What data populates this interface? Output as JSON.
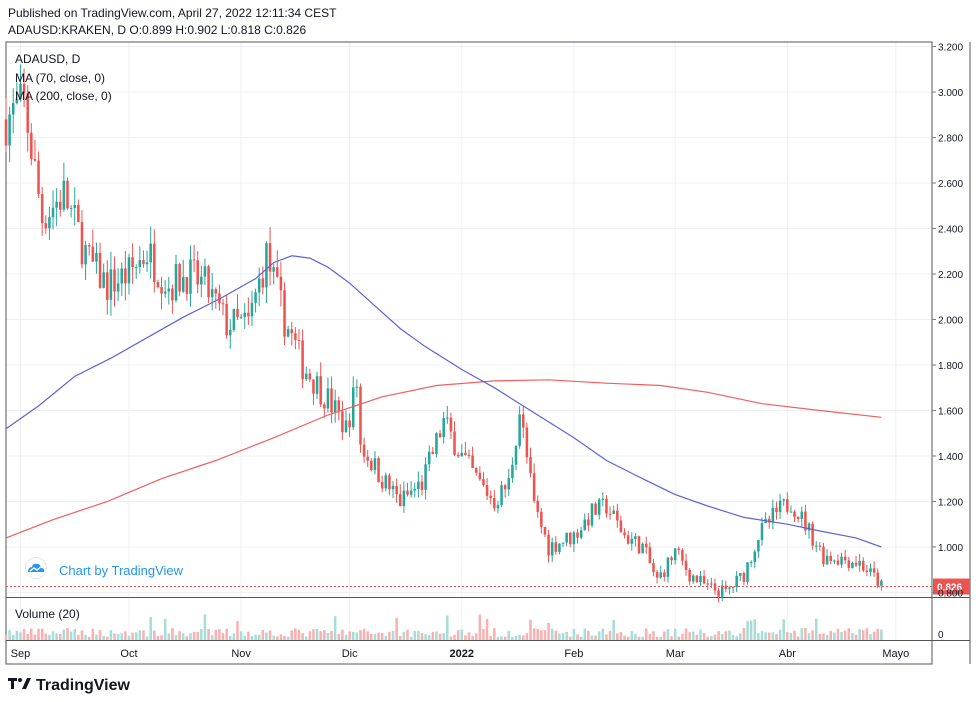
{
  "header": {
    "published": "Published on TradingView.com, April 27, 2022 12:11:34 CEST",
    "ohlc_line": "ADAUSD:KRAKEN, D O:0.899 H:0.902 L:0.818 C:0.826"
  },
  "legend": {
    "symbol": "ADAUSD, D",
    "ma70": "MA (70, close, 0)",
    "ma200": "MA (200, close, 0)",
    "volume": "Volume (20)"
  },
  "watermark": {
    "text": "Chart by TradingView",
    "icon": "tradingview-cloud-icon"
  },
  "footer": {
    "brand": "TradingView",
    "icon": "tradingview-logo-icon"
  },
  "colors": {
    "up": "#26a69a",
    "down": "#ef5350",
    "ma70": "#5b63d9",
    "ma200": "#f0605d",
    "last_price": "#ef5350",
    "grid": "#eef0f3",
    "axis_text": "#131722"
  },
  "chart_data": {
    "type": "candlestick",
    "symbol": "ADAUSD",
    "exchange": "KRAKEN",
    "timeframe": "D",
    "last_price": 0.826,
    "last_price_label": "0.826",
    "ylim": [
      0.78,
      3.22
    ],
    "y_ticks": [
      3.2,
      3.0,
      2.8,
      2.6,
      2.4,
      2.2,
      2.0,
      1.8,
      1.6,
      1.4,
      1.2,
      1.0,
      0.8
    ],
    "y_tick_labels": [
      "3.200",
      "3.000",
      "2.800",
      "2.600",
      "2.400",
      "2.200",
      "2.000",
      "1.800",
      "1.600",
      "1.400",
      "1.200",
      "1.000",
      "0.800"
    ],
    "x_labels": [
      {
        "label": "Sep",
        "date": "2021-09-01"
      },
      {
        "label": "Oct",
        "date": "2021-10-01"
      },
      {
        "label": "Nov",
        "date": "2021-11-01"
      },
      {
        "label": "Dic",
        "date": "2021-12-01"
      },
      {
        "label": "2022",
        "date": "2022-01-01",
        "bold": true
      },
      {
        "label": "Feb",
        "date": "2022-02-01"
      },
      {
        "label": "Mar",
        "date": "2022-03-01"
      },
      {
        "label": "Abr",
        "date": "2022-04-01"
      },
      {
        "label": "Mayo",
        "date": "2022-05-01"
      }
    ],
    "date_range": [
      "2021-08-28",
      "2022-05-11"
    ],
    "volume_axis_label": "0",
    "close_path": [
      {
        "date": "2021-08-28",
        "close": 2.88
      },
      {
        "date": "2021-09-02",
        "close": 2.95
      },
      {
        "date": "2021-09-07",
        "close": 2.45
      },
      {
        "date": "2021-09-13",
        "close": 2.55
      },
      {
        "date": "2021-09-20",
        "close": 2.25
      },
      {
        "date": "2021-09-25",
        "close": 2.15
      },
      {
        "date": "2021-10-01",
        "close": 2.2
      },
      {
        "date": "2021-10-06",
        "close": 2.3
      },
      {
        "date": "2021-10-12",
        "close": 2.15
      },
      {
        "date": "2021-10-17",
        "close": 2.2
      },
      {
        "date": "2021-10-22",
        "close": 2.15
      },
      {
        "date": "2021-10-28",
        "close": 1.98
      },
      {
        "date": "2021-11-03",
        "close": 1.98
      },
      {
        "date": "2021-11-08",
        "close": 2.28
      },
      {
        "date": "2021-11-13",
        "close": 2.0
      },
      {
        "date": "2021-11-18",
        "close": 1.8
      },
      {
        "date": "2021-11-25",
        "close": 1.65
      },
      {
        "date": "2021-11-30",
        "close": 1.52
      },
      {
        "date": "2021-12-03",
        "close": 1.72
      },
      {
        "date": "2021-12-04",
        "close": 1.45
      },
      {
        "date": "2021-12-10",
        "close": 1.3
      },
      {
        "date": "2021-12-15",
        "close": 1.2
      },
      {
        "date": "2021-12-21",
        "close": 1.28
      },
      {
        "date": "2021-12-27",
        "close": 1.55
      },
      {
        "date": "2022-01-01",
        "close": 1.4
      },
      {
        "date": "2022-01-05",
        "close": 1.3
      },
      {
        "date": "2022-01-10",
        "close": 1.2
      },
      {
        "date": "2022-01-14",
        "close": 1.28
      },
      {
        "date": "2022-01-17",
        "close": 1.6
      },
      {
        "date": "2022-01-21",
        "close": 1.18
      },
      {
        "date": "2022-01-25",
        "close": 1.0
      },
      {
        "date": "2022-02-01",
        "close": 1.05
      },
      {
        "date": "2022-02-06",
        "close": 1.15
      },
      {
        "date": "2022-02-10",
        "close": 1.18
      },
      {
        "date": "2022-02-15",
        "close": 1.05
      },
      {
        "date": "2022-02-20",
        "close": 1.0
      },
      {
        "date": "2022-02-24",
        "close": 0.85
      },
      {
        "date": "2022-03-01",
        "close": 0.98
      },
      {
        "date": "2022-03-05",
        "close": 0.88
      },
      {
        "date": "2022-03-10",
        "close": 0.82
      },
      {
        "date": "2022-03-15",
        "close": 0.8
      },
      {
        "date": "2022-03-20",
        "close": 0.88
      },
      {
        "date": "2022-03-24",
        "close": 1.05
      },
      {
        "date": "2022-03-29",
        "close": 1.15
      },
      {
        "date": "2022-04-02",
        "close": 1.2
      },
      {
        "date": "2022-04-06",
        "close": 1.1
      },
      {
        "date": "2022-04-11",
        "close": 0.96
      },
      {
        "date": "2022-04-16",
        "close": 0.95
      },
      {
        "date": "2022-04-21",
        "close": 0.93
      },
      {
        "date": "2022-04-26",
        "close": 0.85
      },
      {
        "date": "2022-04-27",
        "close": 0.826
      }
    ],
    "ma70": [
      {
        "date": "2021-08-28",
        "value": 1.52
      },
      {
        "date": "2021-09-06",
        "value": 1.62
      },
      {
        "date": "2021-09-16",
        "value": 1.75
      },
      {
        "date": "2021-09-26",
        "value": 1.83
      },
      {
        "date": "2021-10-06",
        "value": 1.92
      },
      {
        "date": "2021-10-16",
        "value": 2.01
      },
      {
        "date": "2021-10-26",
        "value": 2.09
      },
      {
        "date": "2021-11-05",
        "value": 2.18
      },
      {
        "date": "2021-11-10",
        "value": 2.25
      },
      {
        "date": "2021-11-15",
        "value": 2.28
      },
      {
        "date": "2021-11-20",
        "value": 2.27
      },
      {
        "date": "2021-11-25",
        "value": 2.23
      },
      {
        "date": "2021-12-01",
        "value": 2.16
      },
      {
        "date": "2021-12-08",
        "value": 2.06
      },
      {
        "date": "2021-12-15",
        "value": 1.96
      },
      {
        "date": "2021-12-22",
        "value": 1.88
      },
      {
        "date": "2022-01-01",
        "value": 1.78
      },
      {
        "date": "2022-01-10",
        "value": 1.7
      },
      {
        "date": "2022-01-20",
        "value": 1.6
      },
      {
        "date": "2022-02-01",
        "value": 1.48
      },
      {
        "date": "2022-02-10",
        "value": 1.38
      },
      {
        "date": "2022-02-20",
        "value": 1.3
      },
      {
        "date": "2022-03-01",
        "value": 1.23
      },
      {
        "date": "2022-03-10",
        "value": 1.18
      },
      {
        "date": "2022-03-20",
        "value": 1.13
      },
      {
        "date": "2022-04-01",
        "value": 1.1
      },
      {
        "date": "2022-04-10",
        "value": 1.07
      },
      {
        "date": "2022-04-20",
        "value": 1.04
      },
      {
        "date": "2022-04-27",
        "value": 1.0
      }
    ],
    "ma200": [
      {
        "date": "2021-08-28",
        "value": 1.04
      },
      {
        "date": "2021-09-10",
        "value": 1.12
      },
      {
        "date": "2021-09-25",
        "value": 1.2
      },
      {
        "date": "2021-10-10",
        "value": 1.3
      },
      {
        "date": "2021-10-25",
        "value": 1.38
      },
      {
        "date": "2021-11-10",
        "value": 1.48
      },
      {
        "date": "2021-11-25",
        "value": 1.58
      },
      {
        "date": "2021-12-10",
        "value": 1.66
      },
      {
        "date": "2021-12-25",
        "value": 1.71
      },
      {
        "date": "2022-01-10",
        "value": 1.73
      },
      {
        "date": "2022-01-25",
        "value": 1.735
      },
      {
        "date": "2022-02-10",
        "value": 1.72
      },
      {
        "date": "2022-02-25",
        "value": 1.71
      },
      {
        "date": "2022-03-10",
        "value": 1.68
      },
      {
        "date": "2022-03-25",
        "value": 1.63
      },
      {
        "date": "2022-04-10",
        "value": 1.6
      },
      {
        "date": "2022-04-27",
        "value": 1.57
      }
    ]
  }
}
